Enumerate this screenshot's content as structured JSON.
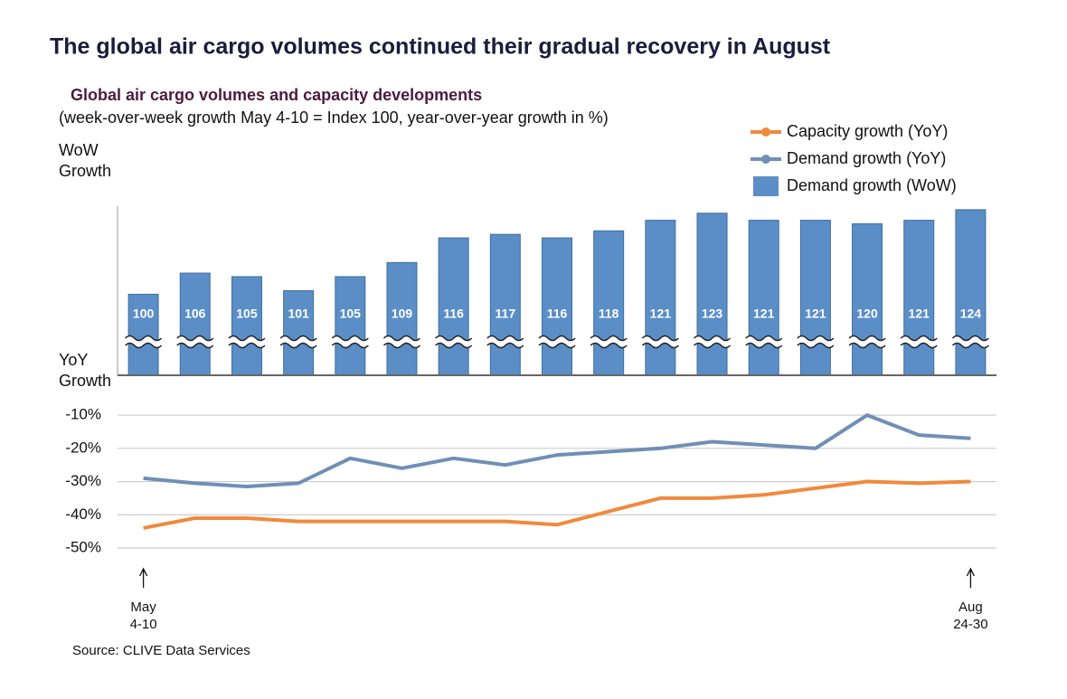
{
  "title": "The global air cargo volumes continued their gradual recovery in August",
  "subtitle": "Global air cargo volumes and capacity developments",
  "note": "(week-over-week growth May 4-10 = Index 100, year-over-year growth in %)",
  "source": "Source: CLIVE Data Services",
  "legend": "top-right",
  "chart_data": [
    {
      "type": "bar",
      "ylabel": "WoW\nGrowth",
      "ylim": [
        77,
        125
      ],
      "series": [
        {
          "name": "Demand growth (WoW)",
          "color": "#5b8ec6",
          "values": [
            100,
            106,
            105,
            101,
            105,
            109,
            116,
            117,
            116,
            118,
            121,
            123,
            121,
            121,
            120,
            121,
            124
          ]
        }
      ]
    },
    {
      "type": "line",
      "ylabel": "YoY\nGrowth",
      "ylim": [
        -50,
        2
      ],
      "yticks": [
        {
          "value": -10,
          "label": "-10%"
        },
        {
          "value": -20,
          "label": "-20%"
        },
        {
          "value": -30,
          "label": "-30%"
        },
        {
          "value": -40,
          "label": "-40%"
        },
        {
          "value": -50,
          "label": "-50%"
        }
      ],
      "grid": true,
      "categories": [
        "May\n4-10",
        null,
        null,
        null,
        null,
        null,
        null,
        null,
        null,
        null,
        null,
        null,
        null,
        null,
        null,
        null,
        "Aug\n24-30"
      ],
      "series": [
        {
          "name": "Capacity growth (YoY)",
          "color": "#f08a3c",
          "values": [
            -44,
            -41,
            -41,
            -42,
            -42,
            -42,
            -42,
            -42,
            -43,
            -39,
            -35,
            -35,
            -34,
            -32,
            -30,
            -30.5,
            -30
          ]
        },
        {
          "name": "Demand growth (YoY)",
          "color": "#6f8fb6",
          "values": [
            -29,
            -30.5,
            -31.5,
            -30.5,
            -23,
            -26,
            -23,
            -25,
            -22,
            -21,
            -20,
            -18,
            -19,
            -20,
            -10,
            -16,
            -17
          ]
        }
      ]
    }
  ]
}
